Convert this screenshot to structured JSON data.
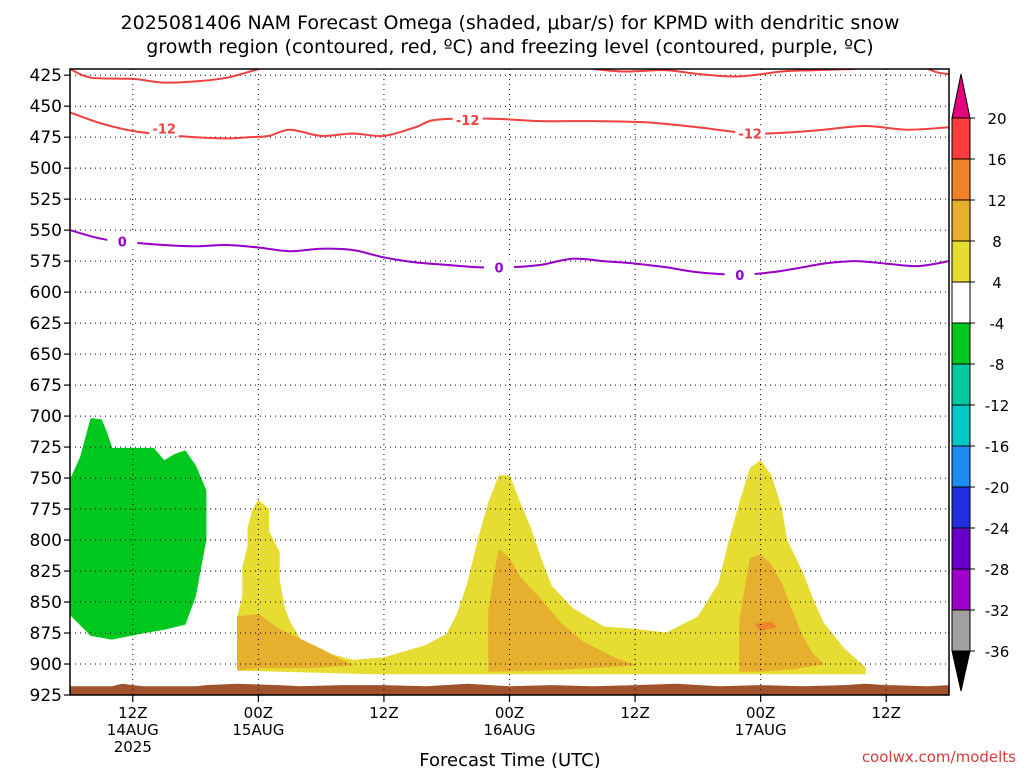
{
  "chart_data": {
    "type": "heatmap",
    "title_line1": "2025081406 NAM Forecast Omega (shaded, μbar/s) for KPMD with dendritic snow",
    "title_line2": "growth region (contoured, red, ºC) and freezing level (contoured, purple, ºC)",
    "xlabel": "Forecast Time (UTC)",
    "watermark": "coolwx.com/modelts",
    "y_axis": {
      "range": [
        925,
        420
      ],
      "ticks": [
        425,
        450,
        475,
        500,
        525,
        550,
        575,
        600,
        625,
        650,
        675,
        700,
        725,
        750,
        775,
        800,
        825,
        850,
        875,
        900,
        925
      ]
    },
    "x_axis": {
      "range_hours": [
        6,
        90
      ],
      "ticks": [
        {
          "hour": 12,
          "labels": [
            "12Z",
            "14AUG",
            "2025"
          ]
        },
        {
          "hour": 24,
          "labels": [
            "00Z",
            "15AUG"
          ]
        },
        {
          "hour": 36,
          "labels": [
            "12Z"
          ]
        },
        {
          "hour": 48,
          "labels": [
            "00Z",
            "16AUG"
          ]
        },
        {
          "hour": 60,
          "labels": [
            "12Z"
          ]
        },
        {
          "hour": 72,
          "labels": [
            "00Z",
            "17AUG"
          ]
        },
        {
          "hour": 84,
          "labels": [
            "12Z"
          ]
        }
      ]
    },
    "colorbar": {
      "levels": [
        -36,
        -32,
        -28,
        -24,
        -20,
        -16,
        -12,
        -8,
        -4,
        4,
        8,
        12,
        16,
        20
      ],
      "colors": [
        "#a0a0a0",
        "#9d00c8",
        "#6a00c8",
        "#2030e0",
        "#1e8cf0",
        "#00c8c8",
        "#00c8a0",
        "#00c81e",
        "#ffffff",
        "#e6dc32",
        "#e6af2d",
        "#f08228",
        "#fa3c3c"
      ],
      "under_color": "#000000",
      "over_color": "#e6007e"
    },
    "contour_labels": {
      "dgz": "-12",
      "freezing": "0"
    },
    "contours": {
      "dgz_upper_left": [
        [
          6,
          420
        ],
        [
          8,
          427
        ],
        [
          12,
          428
        ],
        [
          15,
          431
        ],
        [
          18,
          430
        ],
        [
          21,
          427
        ],
        [
          24,
          420
        ]
      ],
      "dgz_upper_right": [
        [
          56,
          420
        ],
        [
          59,
          422
        ],
        [
          63,
          421
        ],
        [
          66,
          424
        ],
        [
          70,
          426
        ],
        [
          74,
          422
        ],
        [
          77,
          421
        ],
        [
          81,
          420
        ]
      ],
      "dgz_upper_far_right": [
        [
          88,
          420
        ],
        [
          89,
          423
        ],
        [
          90,
          424
        ]
      ],
      "dgz_lower": [
        [
          6,
          455
        ],
        [
          9,
          464
        ],
        [
          12,
          470
        ],
        [
          15,
          473
        ],
        [
          18,
          475
        ],
        [
          21,
          476
        ],
        [
          23,
          475
        ],
        [
          25,
          474
        ],
        [
          27,
          469
        ],
        [
          30,
          474
        ],
        [
          33,
          472
        ],
        [
          36,
          474
        ],
        [
          39,
          467
        ],
        [
          41,
          461
        ],
        [
          46,
          460
        ],
        [
          51,
          462
        ],
        [
          56,
          462
        ],
        [
          61,
          463
        ],
        [
          66,
          467
        ],
        [
          71,
          472
        ],
        [
          75,
          471
        ],
        [
          78,
          469
        ],
        [
          82,
          466
        ],
        [
          86,
          469
        ],
        [
          90,
          467
        ]
      ],
      "freezing": [
        [
          6,
          550
        ],
        [
          9,
          557
        ],
        [
          12,
          560
        ],
        [
          15,
          562
        ],
        [
          18,
          563
        ],
        [
          21,
          562
        ],
        [
          24,
          564
        ],
        [
          27,
          567
        ],
        [
          30,
          565
        ],
        [
          33,
          566
        ],
        [
          36,
          572
        ],
        [
          39,
          576
        ],
        [
          42,
          578
        ],
        [
          45,
          580
        ],
        [
          48,
          580
        ],
        [
          51,
          578
        ],
        [
          54,
          573
        ],
        [
          57,
          575
        ],
        [
          60,
          577
        ],
        [
          63,
          580
        ],
        [
          66,
          584
        ],
        [
          70,
          586
        ],
        [
          73,
          584
        ],
        [
          76,
          580
        ],
        [
          78,
          577
        ],
        [
          81,
          575
        ],
        [
          84,
          577
        ],
        [
          87,
          579
        ],
        [
          90,
          575
        ]
      ]
    },
    "shaded_regions": [
      {
        "omega_range": [
          -8,
          -4
        ],
        "color": "#00c81e",
        "polygon": [
          [
            6,
            752
          ],
          [
            7,
            733
          ],
          [
            8,
            702
          ],
          [
            9,
            703
          ],
          [
            9.5,
            713
          ],
          [
            10,
            726
          ],
          [
            14,
            726
          ],
          [
            15,
            736
          ],
          [
            16,
            731
          ],
          [
            17,
            728
          ],
          [
            18,
            740
          ],
          [
            19,
            760
          ],
          [
            19,
            800
          ],
          [
            18.5,
            822
          ],
          [
            18,
            845
          ],
          [
            17,
            868
          ],
          [
            15,
            872
          ],
          [
            13,
            875
          ],
          [
            10,
            880
          ],
          [
            8,
            877
          ],
          [
            6,
            860
          ]
        ]
      },
      {
        "omega_range": [
          4,
          8
        ],
        "color": "#e6dc32",
        "polygon": [
          [
            22,
            905
          ],
          [
            22,
            863
          ],
          [
            22.5,
            845
          ],
          [
            22.5,
            822
          ],
          [
            23,
            805
          ],
          [
            23,
            790
          ],
          [
            23.5,
            775
          ],
          [
            24,
            768
          ],
          [
            25,
            775
          ],
          [
            25,
            793
          ],
          [
            26,
            810
          ],
          [
            26,
            832
          ],
          [
            26.5,
            855
          ],
          [
            27,
            866
          ],
          [
            28,
            880
          ],
          [
            30,
            890
          ],
          [
            33,
            897
          ],
          [
            36,
            895
          ],
          [
            38,
            890
          ],
          [
            40,
            885
          ],
          [
            42,
            876
          ],
          [
            43,
            860
          ],
          [
            44,
            835
          ],
          [
            45,
            800
          ],
          [
            46,
            770
          ],
          [
            47,
            748
          ],
          [
            48,
            748
          ],
          [
            49,
            770
          ],
          [
            50,
            790
          ],
          [
            51,
            815
          ],
          [
            52,
            837
          ],
          [
            54,
            855
          ],
          [
            57,
            870
          ],
          [
            60,
            872
          ],
          [
            63,
            875
          ],
          [
            66,
            862
          ],
          [
            68,
            835
          ],
          [
            69,
            800
          ],
          [
            70,
            770
          ],
          [
            71,
            742
          ],
          [
            72,
            736
          ],
          [
            73,
            748
          ],
          [
            74,
            775
          ],
          [
            74.5,
            800
          ],
          [
            76,
            826
          ],
          [
            77,
            848
          ],
          [
            78,
            867
          ],
          [
            80,
            888
          ],
          [
            82,
            903
          ],
          [
            82,
            908
          ],
          [
            35,
            908
          ]
        ]
      },
      {
        "omega_range": [
          8,
          12
        ],
        "color": "#e6af2d",
        "polygon": [
          [
            22,
            905
          ],
          [
            22,
            862
          ],
          [
            24,
            860
          ],
          [
            26,
            872
          ],
          [
            28,
            880
          ],
          [
            30,
            888
          ],
          [
            32,
            897
          ],
          [
            33,
            901
          ],
          [
            29,
            903
          ],
          [
            24,
            903
          ]
        ]
      },
      {
        "omega_range": [
          8,
          12
        ],
        "color": "#e6af2d",
        "polygon": [
          [
            46,
            906
          ],
          [
            46,
            858
          ],
          [
            46.5,
            830
          ],
          [
            47,
            808
          ],
          [
            48,
            815
          ],
          [
            49,
            830
          ],
          [
            51,
            848
          ],
          [
            53,
            868
          ],
          [
            55,
            882
          ],
          [
            58,
            895
          ],
          [
            60,
            901
          ],
          [
            56,
            903
          ],
          [
            51,
            905
          ]
        ]
      },
      {
        "omega_range": [
          8,
          12
        ],
        "color": "#e6af2d",
        "polygon": [
          [
            70,
            906
          ],
          [
            70,
            865
          ],
          [
            70.5,
            840
          ],
          [
            71,
            815
          ],
          [
            72,
            812
          ],
          [
            73,
            820
          ],
          [
            74,
            835
          ],
          [
            75,
            857
          ],
          [
            76,
            878
          ],
          [
            77,
            892
          ],
          [
            78,
            900
          ],
          [
            75,
            904
          ],
          [
            72,
            906
          ]
        ]
      },
      {
        "omega_range": [
          12,
          16
        ],
        "color": "#f08228",
        "polygon": [
          [
            71.5,
            868
          ],
          [
            73,
            866
          ],
          [
            73.5,
            870
          ],
          [
            72,
            873
          ]
        ]
      }
    ],
    "terrain": {
      "color": "#a0522d",
      "top": [
        [
          6,
          918
        ],
        [
          10,
          918
        ],
        [
          11,
          916
        ],
        [
          12,
          917
        ],
        [
          13,
          918
        ],
        [
          18,
          918
        ],
        [
          19,
          917
        ],
        [
          22,
          916
        ],
        [
          26,
          917
        ],
        [
          28,
          918
        ],
        [
          32,
          917
        ],
        [
          36,
          917
        ],
        [
          40,
          918
        ],
        [
          44,
          916
        ],
        [
          48,
          918
        ],
        [
          52,
          917
        ],
        [
          56,
          918
        ],
        [
          60,
          917
        ],
        [
          64,
          916
        ],
        [
          68,
          918
        ],
        [
          72,
          917
        ],
        [
          76,
          918
        ],
        [
          80,
          917
        ],
        [
          82,
          916
        ],
        [
          84,
          917
        ],
        [
          88,
          918
        ],
        [
          90,
          917
        ]
      ]
    }
  }
}
